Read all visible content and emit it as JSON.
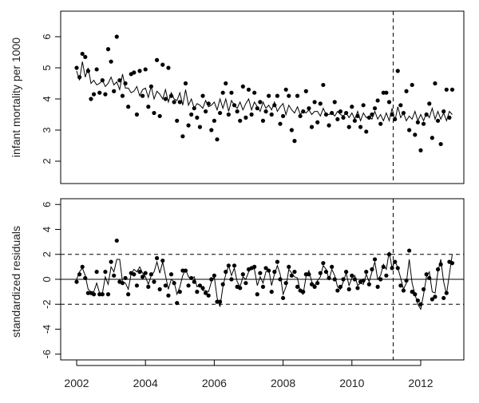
{
  "chart_data": [
    {
      "type": "line",
      "panel": "top",
      "ylabel": "infant mortality per 1000",
      "xlim": [
        2002,
        2012.917
      ],
      "ylim": [
        1.4,
        6.6
      ],
      "yticks": [
        "2",
        "3",
        "4",
        "5",
        "6"
      ],
      "x_start": 2002,
      "x_step_months": 1,
      "event_line_x": 2011.2,
      "series": [
        {
          "style": "points",
          "values": [
            5.0,
            4.7,
            5.45,
            5.35,
            4.9,
            4.0,
            4.15,
            4.95,
            4.2,
            4.6,
            4.15,
            5.6,
            5.2,
            4.25,
            6.0,
            4.6,
            4.1,
            4.5,
            3.75,
            4.8,
            4.85,
            3.5,
            4.9,
            4.1,
            4.95,
            3.75,
            4.4,
            3.55,
            5.25,
            3.45,
            5.1,
            4.0,
            5.0,
            4.1,
            3.9,
            3.3,
            3.9,
            2.8,
            4.5,
            3.15,
            3.5,
            3.7,
            3.4,
            3.1,
            4.1,
            3.6,
            3.85,
            3.0,
            3.3,
            2.7,
            3.55,
            4.2,
            4.5,
            3.5,
            4.2,
            3.8,
            3.6,
            3.3,
            4.4,
            3.4,
            4.3,
            3.5,
            4.2,
            3.7,
            3.9,
            3.3,
            3.6,
            4.1,
            3.5,
            3.8,
            4.1,
            3.2,
            3.45,
            4.3,
            4.1,
            3.0,
            2.65,
            4.1,
            3.45,
            3.6,
            4.25,
            3.7,
            3.1,
            3.9,
            3.25,
            3.85,
            4.45,
            3.5,
            3.15,
            3.55,
            3.9,
            3.35,
            3.6,
            3.4,
            3.55,
            3.1,
            3.75,
            3.3,
            3.45,
            3.1,
            3.8,
            2.95,
            3.4,
            3.5,
            3.7,
            3.95,
            3.2,
            4.2,
            4.2,
            3.9,
            3.5,
            3.35,
            4.9,
            3.8,
            3.55,
            4.25,
            3.0,
            4.45,
            2.85,
            3.25,
            2.35,
            3.2,
            3.5,
            3.85,
            2.75,
            4.5,
            3.3,
            2.55,
            3.6,
            4.3,
            3.4,
            4.3
          ]
        },
        {
          "style": "line",
          "values": [
            4.9,
            4.6,
            5.2,
            4.7,
            5.0,
            4.5,
            4.6,
            4.45,
            4.5,
            4.6,
            4.4,
            4.5,
            4.7,
            4.45,
            4.55,
            4.3,
            4.8,
            4.35,
            4.35,
            4.2,
            4.25,
            4.4,
            4.1,
            4.3,
            4.35,
            4.05,
            4.4,
            4.0,
            4.25,
            4.15,
            4.0,
            4.3,
            3.9,
            4.2,
            4.0,
            3.95,
            4.2,
            3.8,
            4.3,
            3.8,
            4.0,
            3.7,
            3.85,
            3.8,
            3.7,
            3.95,
            3.75,
            3.8,
            3.9,
            3.65,
            4.0,
            3.7,
            4.0,
            3.6,
            3.95,
            3.8,
            3.7,
            3.9,
            3.65,
            3.85,
            4.0,
            3.65,
            3.9,
            3.75,
            3.6,
            3.9,
            3.7,
            3.8,
            3.65,
            3.9,
            3.6,
            3.75,
            3.85,
            3.5,
            3.8,
            3.65,
            3.55,
            3.75,
            3.5,
            3.6,
            3.55,
            3.65,
            3.5,
            3.6,
            3.6,
            3.45,
            3.7,
            3.5,
            3.5,
            3.55,
            3.45,
            3.6,
            3.5,
            3.45,
            3.55,
            3.4,
            3.55,
            3.35,
            3.6,
            3.3,
            3.55,
            3.4,
            3.45,
            3.35,
            3.6,
            3.35,
            3.5,
            3.3,
            3.55,
            3.3,
            3.7,
            3.3,
            3.75,
            3.4,
            3.55,
            3.3,
            3.45,
            3.35,
            3.6,
            3.3,
            3.5,
            3.3,
            3.55,
            3.4,
            3.7,
            3.35,
            3.6,
            3.35,
            3.55,
            3.3,
            3.6,
            3.5
          ]
        }
      ]
    },
    {
      "type": "line",
      "panel": "bottom",
      "ylabel": "standardized residuals",
      "xlabel": "",
      "xlim": [
        2002,
        2012.917
      ],
      "ylim": [
        -6.5,
        6.5
      ],
      "yticks": [
        "-6",
        "-4",
        "-2",
        "0",
        "2",
        "4",
        "6"
      ],
      "xticks": [
        "2002",
        "2004",
        "2006",
        "2008",
        "2010",
        "2012"
      ],
      "x_start": 2002,
      "x_step_months": 1,
      "event_line_x": 2011.2,
      "reference_lines": {
        "solid": [
          0
        ],
        "dashed": [
          -2,
          2
        ]
      },
      "series": [
        {
          "style": "points",
          "values": [
            -0.2,
            0.4,
            1.0,
            0.1,
            -1.1,
            -1.1,
            -1.2,
            0.6,
            -1.2,
            -1.2,
            0.6,
            -1.2,
            1.4,
            0.3,
            3.1,
            -0.2,
            -0.3,
            0.1,
            -1.2,
            0.5,
            0.4,
            -0.5,
            0.6,
            0.2,
            0.5,
            -0.6,
            0.4,
            -0.2,
            1.7,
            -0.8,
            1.5,
            -0.5,
            -1.3,
            0.4,
            -0.3,
            -1.9,
            -1.0,
            0.7,
            0.7,
            -0.5,
            0.1,
            -0.2,
            -1.0,
            -0.5,
            -0.7,
            -1.1,
            -1.3,
            0.0,
            0.3,
            -1.8,
            -1.8,
            -0.4,
            0.6,
            1.1,
            0.0,
            1.1,
            -0.6,
            -0.7,
            0.4,
            -0.3,
            0.8,
            0.9,
            1.0,
            -1.2,
            0.5,
            -0.6,
            0.9,
            0.7,
            -1.0,
            0.6,
            1.4,
            0.0,
            -1.5,
            -0.3,
            1.0,
            0.3,
            0.6,
            -0.6,
            -0.9,
            -1.0,
            0.4,
            0.4,
            -0.4,
            -0.6,
            -0.3,
            0.5,
            1.3,
            0.6,
            0.1,
            1.0,
            0.0,
            -0.9,
            -0.6,
            0.0,
            0.6,
            -0.8,
            0.3,
            0.0,
            -0.7,
            -0.2,
            -0.1,
            0.6,
            -0.4,
            0.8,
            1.6,
            -0.6,
            0.0,
            1.0,
            0.3,
            2.0,
            0.9,
            1.4,
            0.9,
            -0.5,
            -0.9,
            -0.1,
            2.3,
            -1.0,
            -1.2,
            -1.7,
            -2.0,
            -0.8,
            0.4,
            0.1,
            -1.6,
            -1.4,
            0.8,
            1.2,
            -1.5,
            -1.1,
            1.4,
            1.3
          ]
        },
        {
          "style": "line",
          "values": [
            0.0,
            0.6,
            0.9,
            0.3,
            -0.8,
            -1.0,
            -1.0,
            -0.3,
            -1.1,
            -1.1,
            0.2,
            -0.4,
            1.0,
            0.6,
            1.6,
            1.6,
            -0.2,
            -0.3,
            -0.8,
            0.4,
            0.8,
            0.6,
            1.0,
            0.5,
            0.2,
            -0.4,
            0.3,
            0.6,
            1.4,
            0.5,
            1.4,
            0.3,
            -0.8,
            0.0,
            -0.2,
            -1.2,
            -0.6,
            0.3,
            0.8,
            0.2,
            0.0,
            0.2,
            -0.6,
            -0.4,
            -0.9,
            -0.9,
            -1.0,
            -0.2,
            0.2,
            -1.5,
            -2.2,
            -0.6,
            0.4,
            1.1,
            0.3,
            0.9,
            -0.2,
            -0.6,
            0.2,
            0.0,
            0.6,
            1.0,
            0.8,
            -0.5,
            0.2,
            -0.3,
            0.6,
            0.8,
            -0.5,
            0.4,
            1.1,
            0.4,
            -1.2,
            -0.6,
            0.8,
            0.5,
            0.2,
            0.1,
            -1.0,
            -1.2,
            0.2,
            0.7,
            -0.2,
            -0.5,
            -0.1,
            0.2,
            1.1,
            0.8,
            0.0,
            0.8,
            0.3,
            -0.6,
            -0.8,
            -0.2,
            0.5,
            -0.5,
            0.1,
            0.3,
            -0.5,
            -0.3,
            -0.4,
            0.4,
            -0.2,
            0.6,
            1.4,
            0.0,
            0.3,
            1.2,
            0.8,
            2.2,
            0.9,
            1.5,
            0.9,
            0.1,
            -0.8,
            -0.3,
            1.6,
            -0.3,
            -1.2,
            -2.0,
            -2.4,
            -1.2,
            0.2,
            0.6,
            -1.0,
            -1.1,
            0.6,
            1.6,
            -0.2,
            -1.2,
            0.4,
            2.0
          ]
        }
      ]
    }
  ]
}
